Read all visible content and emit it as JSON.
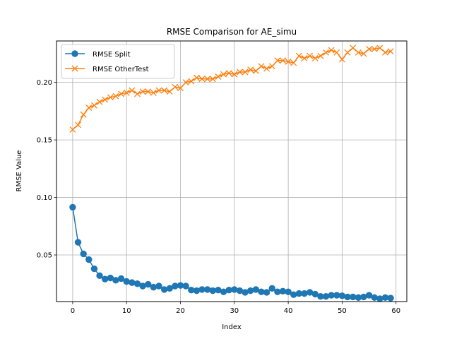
{
  "chart_data": {
    "type": "line",
    "title": "RMSE Comparison for AE_simu",
    "xlabel": "Index",
    "ylabel": "RMSE Value",
    "xlim": [
      -3,
      62
    ],
    "ylim": [
      0.0095,
      0.236
    ],
    "x_ticks": [
      0,
      10,
      20,
      30,
      40,
      50,
      60
    ],
    "y_ticks": [
      0.05,
      0.1,
      0.15,
      0.2
    ],
    "y_tick_labels": [
      "0.05",
      "0.10",
      "0.15",
      "0.20"
    ],
    "grid": true,
    "legend_position": "top-left",
    "x": [
      0,
      1,
      2,
      3,
      4,
      5,
      6,
      7,
      8,
      9,
      10,
      11,
      12,
      13,
      14,
      15,
      16,
      17,
      18,
      19,
      20,
      21,
      22,
      23,
      24,
      25,
      26,
      27,
      28,
      29,
      30,
      31,
      32,
      33,
      34,
      35,
      36,
      37,
      38,
      39,
      40,
      41,
      42,
      43,
      44,
      45,
      46,
      47,
      48,
      49,
      50,
      51,
      52,
      53,
      54,
      55,
      56,
      57,
      58,
      59
    ],
    "series": [
      {
        "name": "RMSE Split",
        "color": "#1f77b4",
        "marker": "circle",
        "values": [
          0.0915,
          0.061,
          0.051,
          0.046,
          0.038,
          0.032,
          0.029,
          0.03,
          0.028,
          0.0295,
          0.027,
          0.026,
          0.025,
          0.023,
          0.0245,
          0.022,
          0.023,
          0.02,
          0.021,
          0.023,
          0.0235,
          0.023,
          0.0195,
          0.019,
          0.02,
          0.02,
          0.019,
          0.0195,
          0.018,
          0.0195,
          0.02,
          0.019,
          0.0175,
          0.019,
          0.02,
          0.018,
          0.0175,
          0.021,
          0.018,
          0.0185,
          0.018,
          0.0155,
          0.0165,
          0.0165,
          0.0175,
          0.016,
          0.014,
          0.014,
          0.015,
          0.015,
          0.0145,
          0.0135,
          0.0135,
          0.013,
          0.0135,
          0.015,
          0.013,
          0.012,
          0.013,
          0.0125
        ]
      },
      {
        "name": "RMSE OtherTest",
        "color": "#ff7f0e",
        "marker": "x",
        "values": [
          0.159,
          0.163,
          0.172,
          0.178,
          0.18,
          0.183,
          0.185,
          0.187,
          0.188,
          0.19,
          0.191,
          0.193,
          0.19,
          0.192,
          0.192,
          0.191,
          0.193,
          0.193,
          0.192,
          0.196,
          0.195,
          0.2,
          0.201,
          0.204,
          0.203,
          0.203,
          0.203,
          0.205,
          0.207,
          0.208,
          0.207,
          0.209,
          0.209,
          0.211,
          0.21,
          0.214,
          0.212,
          0.214,
          0.219,
          0.219,
          0.218,
          0.217,
          0.223,
          0.221,
          0.223,
          0.221,
          0.223,
          0.226,
          0.228,
          0.226,
          0.22,
          0.226,
          0.23,
          0.226,
          0.225,
          0.229,
          0.229,
          0.23,
          0.226,
          0.227
        ]
      }
    ]
  }
}
